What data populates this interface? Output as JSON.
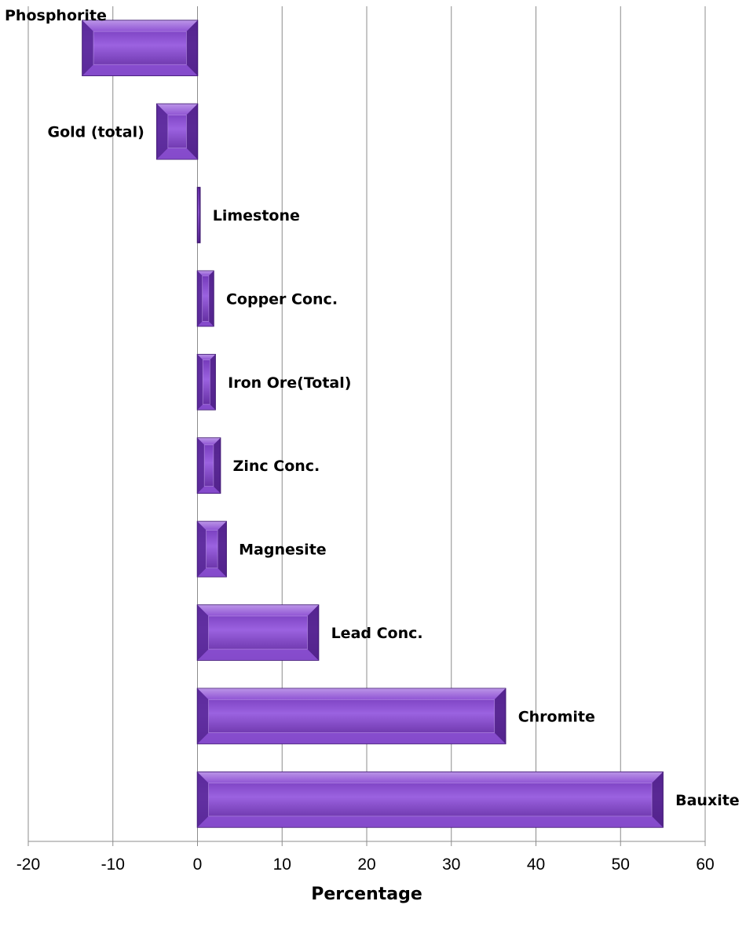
{
  "chart_data": {
    "type": "bar",
    "orientation": "horizontal",
    "title": "",
    "xlabel": "Percentage",
    "ylabel": "",
    "xlim": [
      -20,
      60
    ],
    "xticks": [
      -20,
      -10,
      0,
      10,
      20,
      30,
      40,
      50,
      60
    ],
    "grid": "vertical",
    "legend": "none",
    "bar_color": "#7b3fbf",
    "categories": [
      "Phosphorite",
      "Gold (total)",
      "Limestone",
      "Copper Conc.",
      "Iron Ore(Total)",
      "Zinc Conc.",
      "Magnesite",
      "Lead Conc.",
      "Chromite",
      "Bauxite"
    ],
    "values": [
      -13.6,
      -4.8,
      0.3,
      1.9,
      2.1,
      2.7,
      3.4,
      14.3,
      36.4,
      55.0
    ]
  }
}
